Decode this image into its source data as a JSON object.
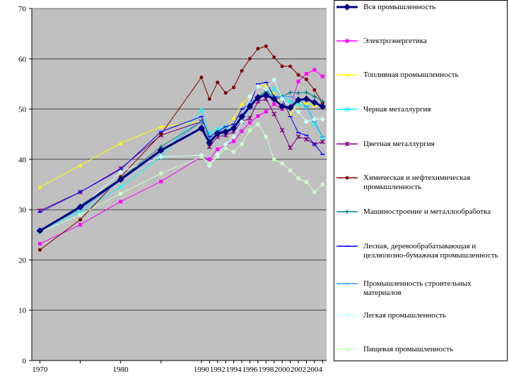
{
  "chart_data": {
    "type": "line",
    "title": "",
    "xlabel": "",
    "ylabel": "",
    "x": [
      1970,
      1975,
      1980,
      1985,
      1990,
      1991,
      1992,
      1993,
      1994,
      1995,
      1996,
      1997,
      1998,
      1999,
      2000,
      2001,
      2002,
      2003,
      2004,
      2005
    ],
    "x_ticks": [
      1970,
      1980,
      1990,
      1992,
      1994,
      1996,
      1998,
      2000,
      2002,
      2004
    ],
    "xlim": [
      1969,
      2005.5
    ],
    "ylim": [
      0,
      70
    ],
    "y_ticks": [
      0,
      10,
      20,
      30,
      40,
      50,
      60,
      70
    ],
    "plot_background": "#c0c0c0",
    "legend_position": "right",
    "series": [
      {
        "name": "Вся промышленность",
        "color": "#000080",
        "marker": "diamond",
        "width": 3,
        "values": [
          25.8,
          30.5,
          36.0,
          41.8,
          46.2,
          43.3,
          45.2,
          45.5,
          46.2,
          48.5,
          50.5,
          52.3,
          52.8,
          52.0,
          50.5,
          50.3,
          51.8,
          52.0,
          51.3,
          50.5
        ]
      },
      {
        "name": "Электроэнергетика",
        "color": "#ff00ff",
        "marker": "square",
        "width": 1,
        "values": [
          23.2,
          27.0,
          31.6,
          35.6,
          40.5,
          40.0,
          42.0,
          42.8,
          43.6,
          45.6,
          47.3,
          48.6,
          49.5,
          51.0,
          50.0,
          50.5,
          55.5,
          57.0,
          57.8,
          56.5
        ]
      },
      {
        "name": "Топливная промышленность",
        "color": "#ffff00",
        "marker": "triangle",
        "width": 1,
        "values": [
          34.5,
          38.8,
          43.2,
          46.5,
          47.5,
          44.5,
          45.2,
          45.5,
          48.2,
          51.0,
          52.5,
          54.5,
          54.8,
          53.0,
          50.5,
          49.0,
          51.0,
          51.2,
          50.8,
          50.5
        ]
      },
      {
        "name": "Черная металлургия",
        "color": "#00ffff",
        "marker": "x",
        "width": 1,
        "values": [
          25.8,
          29.5,
          34.5,
          40.5,
          49.8,
          45.2,
          46.0,
          46.5,
          45.5,
          47.5,
          50.5,
          52.0,
          53.0,
          54.0,
          52.5,
          51.5,
          51.0,
          50.5,
          47.0,
          44.2
        ]
      },
      {
        "name": "Цветная металлургия",
        "color": "#800080",
        "marker": "star",
        "width": 1,
        "values": [
          29.8,
          33.5,
          38.2,
          44.8,
          47.5,
          42.5,
          44.5,
          44.8,
          45.5,
          47.5,
          48.2,
          51.5,
          52.0,
          49.0,
          45.8,
          42.3,
          44.5,
          44.0,
          43.0,
          43.5
        ]
      },
      {
        "name": "Химическая и нефтехимическая промышленность",
        "color": "#800000",
        "marker": "circle",
        "width": 1,
        "values": [
          22.0,
          28.0,
          36.5,
          45.0,
          56.3,
          52.0,
          55.3,
          53.2,
          54.3,
          57.6,
          60.0,
          62.0,
          62.5,
          60.3,
          58.5,
          58.5,
          56.8,
          55.9,
          53.8,
          51.2
        ]
      },
      {
        "name": "Машиностроение и металлообработка",
        "color": "#008080",
        "marker": "plus",
        "width": 1,
        "values": [
          25.8,
          30.8,
          36.2,
          42.5,
          47.5,
          44.0,
          45.0,
          45.2,
          46.2,
          48.5,
          50.5,
          52.5,
          53.5,
          52.5,
          52.5,
          53.3,
          53.2,
          53.3,
          52.5,
          51.5
        ]
      },
      {
        "name": "Лесная, деревообрабатывающая и целлюлозно-бумажная промышленность",
        "color": "#0000ff",
        "marker": "dash",
        "width": 1,
        "values": [
          29.5,
          33.5,
          38.0,
          45.5,
          48.5,
          44.5,
          45.5,
          46.5,
          47.0,
          50.0,
          51.0,
          55.0,
          55.3,
          52.5,
          52.0,
          48.5,
          45.3,
          44.8,
          43.0,
          41.0
        ]
      },
      {
        "name": "Промышленность строительных материалов",
        "color": "#3399ff",
        "marker": "dash",
        "width": 1,
        "values": [
          26.0,
          30.0,
          35.8,
          41.5,
          47.5,
          43.8,
          45.5,
          45.8,
          46.0,
          48.0,
          51.2,
          52.5,
          52.8,
          52.5,
          52.5,
          52.5,
          52.0,
          50.5,
          47.5,
          44.5
        ]
      },
      {
        "name": "Легкая промышленность",
        "color": "#ccffff",
        "marker": "diamond",
        "width": 1,
        "values": [
          26.0,
          30.2,
          37.5,
          40.5,
          40.8,
          38.8,
          41.0,
          43.0,
          44.5,
          47.5,
          52.5,
          54.5,
          54.0,
          55.8,
          52.0,
          50.5,
          49.5,
          47.5,
          48.0,
          48.0
        ]
      },
      {
        "name": "Пищевая промышленность",
        "color": "#ccffcc",
        "marker": "square",
        "width": 1,
        "values": [
          25.5,
          29.0,
          33.2,
          37.2,
          40.5,
          39.0,
          40.5,
          42.2,
          41.5,
          43.0,
          45.8,
          47.0,
          44.5,
          40.0,
          39.2,
          37.8,
          36.2,
          35.5,
          33.5,
          35.0
        ]
      }
    ]
  }
}
